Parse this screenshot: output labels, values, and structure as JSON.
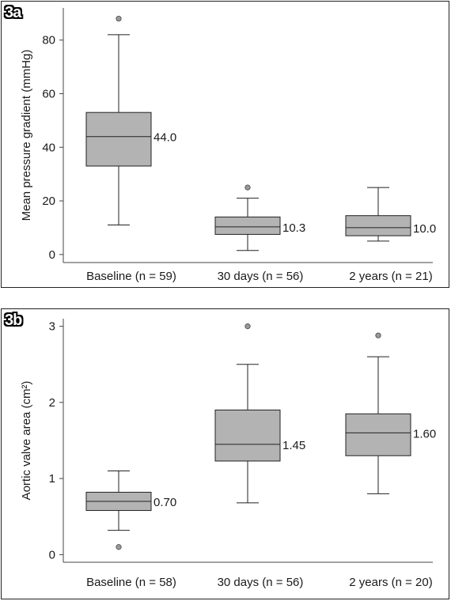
{
  "chart_data": [
    {
      "type": "box",
      "panel_label": "3a",
      "ylabel": "Mean pressure gradient (mmHg)",
      "ylim": [
        -3,
        92
      ],
      "yticks": [
        0,
        20,
        40,
        60,
        80
      ],
      "grid": false,
      "box_color": "#b3b3b3",
      "outlier_color": "#9a9a9a",
      "categories": [
        "Baseline (n = 59)",
        "30 days (n = 56)",
        "2 years (n = 21)"
      ],
      "boxes": [
        {
          "min": 11,
          "q1": 33,
          "median": 44.0,
          "q3": 53,
          "max": 82,
          "outliers": [
            88
          ],
          "median_label": "44.0"
        },
        {
          "min": 1.5,
          "q1": 7.5,
          "median": 10.3,
          "q3": 14,
          "max": 21,
          "outliers": [
            25
          ],
          "median_label": "10.3"
        },
        {
          "min": 5,
          "q1": 7,
          "median": 10.0,
          "q3": 14.5,
          "max": 25,
          "outliers": [],
          "median_label": "10.0"
        }
      ]
    },
    {
      "type": "box",
      "panel_label": "3b",
      "ylabel": "Aortic valve area (cm²)",
      "ylim": [
        -0.1,
        3.1
      ],
      "yticks": [
        0,
        1,
        2,
        3
      ],
      "grid": false,
      "box_color": "#b3b3b3",
      "outlier_color": "#9a9a9a",
      "categories": [
        "Baseline (n = 58)",
        "30 days (n = 56)",
        "2 years (n = 20)"
      ],
      "boxes": [
        {
          "min": 0.32,
          "q1": 0.58,
          "median": 0.7,
          "q3": 0.82,
          "max": 1.1,
          "outliers": [
            0.1
          ],
          "median_label": "0.70"
        },
        {
          "min": 0.68,
          "q1": 1.23,
          "median": 1.45,
          "q3": 1.9,
          "max": 2.5,
          "outliers": [
            3.0
          ],
          "median_label": "1.45"
        },
        {
          "min": 0.8,
          "q1": 1.3,
          "median": 1.6,
          "q3": 1.85,
          "max": 2.6,
          "outliers": [
            2.88
          ],
          "median_label": "1.60"
        }
      ]
    }
  ]
}
